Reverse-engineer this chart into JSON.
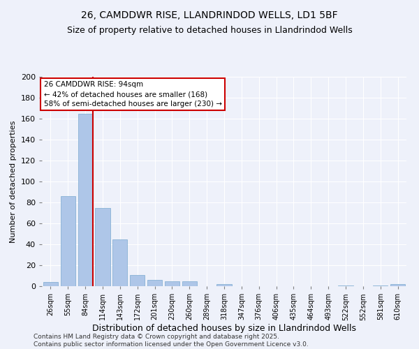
{
  "title1": "26, CAMDDWR RISE, LLANDRINDOD WELLS, LD1 5BF",
  "title2": "Size of property relative to detached houses in Llandrindod Wells",
  "xlabel": "Distribution of detached houses by size in Llandrindod Wells",
  "ylabel": "Number of detached properties",
  "categories": [
    "26sqm",
    "55sqm",
    "84sqm",
    "114sqm",
    "143sqm",
    "172sqm",
    "201sqm",
    "230sqm",
    "260sqm",
    "289sqm",
    "318sqm",
    "347sqm",
    "376sqm",
    "406sqm",
    "435sqm",
    "464sqm",
    "493sqm",
    "522sqm",
    "552sqm",
    "581sqm",
    "610sqm"
  ],
  "values": [
    4,
    86,
    165,
    75,
    45,
    11,
    6,
    5,
    5,
    0,
    2,
    0,
    0,
    0,
    0,
    0,
    0,
    1,
    0,
    1,
    2
  ],
  "bar_color": "#aec6e8",
  "bar_edge_color": "#7aaad0",
  "annotation_title": "26 CAMDDWR RISE: 94sqm",
  "annotation_line1": "← 42% of detached houses are smaller (168)",
  "annotation_line2": "58% of semi-detached houses are larger (230) →",
  "annotation_box_color": "#ffffff",
  "annotation_box_edge": "#cc0000",
  "ref_line_color": "#cc0000",
  "background_color": "#eef1fa",
  "footer": "Contains HM Land Registry data © Crown copyright and database right 2025.\nContains public sector information licensed under the Open Government Licence v3.0.",
  "ylim": [
    0,
    200
  ],
  "yticks": [
    0,
    20,
    40,
    60,
    80,
    100,
    120,
    140,
    160,
    180,
    200
  ],
  "title1_fontsize": 10,
  "title2_fontsize": 9
}
